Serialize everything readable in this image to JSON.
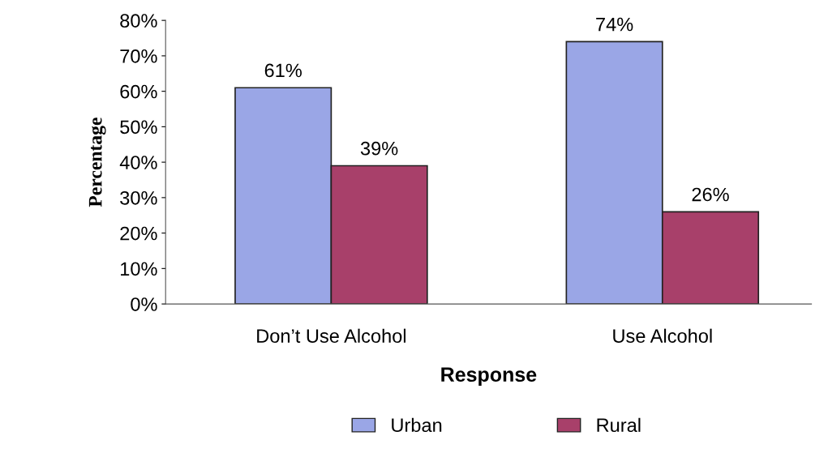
{
  "chart_data": {
    "type": "bar",
    "xlabel": "Response",
    "ylabel": "Percentage",
    "categories": [
      "Don’t Use Alcohol",
      "Use Alcohol"
    ],
    "series": [
      {
        "name": "Urban",
        "color": "#9aa6e6",
        "values": [
          61,
          74
        ],
        "value_labels": [
          "61%",
          "74%"
        ]
      },
      {
        "name": "Rural",
        "color": "#a8406a",
        "values": [
          39,
          26
        ],
        "value_labels": [
          "39%",
          "26%"
        ]
      }
    ],
    "ylim": [
      0,
      80
    ],
    "yticks": [
      {
        "value": 0,
        "label": "0%"
      },
      {
        "value": 10,
        "label": "10%"
      },
      {
        "value": 20,
        "label": "20%"
      },
      {
        "value": 30,
        "label": "30%"
      },
      {
        "value": 40,
        "label": "40%"
      },
      {
        "value": 50,
        "label": "50%"
      },
      {
        "value": 60,
        "label": "60%"
      },
      {
        "value": 70,
        "label": "70%"
      },
      {
        "value": 80,
        "label": "80%"
      }
    ],
    "grid": false,
    "legend": "bottom"
  }
}
